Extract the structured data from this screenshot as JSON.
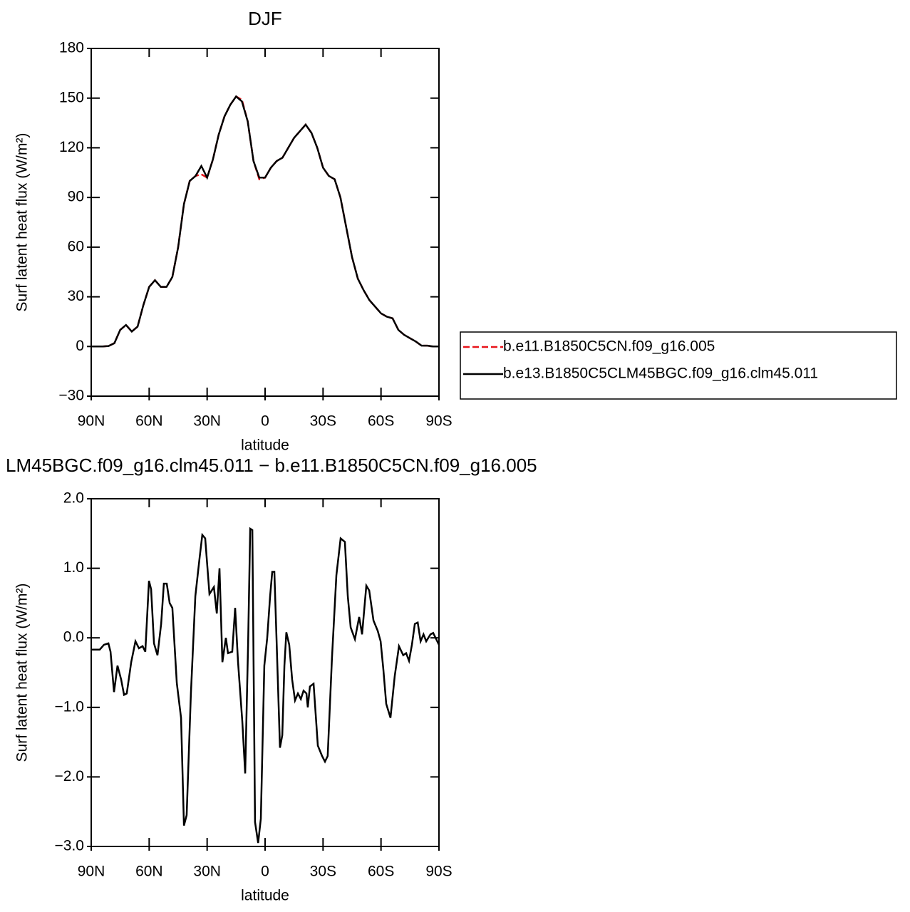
{
  "chart_data": [
    {
      "type": "line",
      "title": "DJF",
      "x_label": "latitude",
      "y_label": "Surf latent heat flux (W/m²)",
      "x": [
        90,
        87,
        84,
        81,
        78,
        75,
        72,
        69,
        66,
        63,
        60,
        57,
        54,
        51,
        48,
        45,
        42,
        39,
        36,
        33,
        30,
        27,
        24,
        21,
        18,
        15,
        12,
        9,
        6,
        3,
        0,
        -3,
        -6,
        -9,
        -12,
        -15,
        -18,
        -21,
        -24,
        -27,
        -30,
        -33,
        -36,
        -39,
        -42,
        -45,
        -48,
        -51,
        -54,
        -57,
        -60,
        -63,
        -66,
        -69,
        -72,
        -75,
        -78,
        -81,
        -84,
        -87,
        -90
      ],
      "series": [
        {
          "name": "b.e11.B1850C5CN.f09_g16.005",
          "color": "#e8141a",
          "line_style": "dashed",
          "values": [
            0,
            0,
            0,
            0.3,
            2,
            10,
            13,
            9,
            12,
            25,
            36,
            40,
            36,
            36,
            42,
            60,
            86,
            100,
            103,
            104,
            102,
            113,
            128,
            139,
            146,
            151,
            149,
            136,
            112,
            101,
            102,
            108,
            112,
            114,
            120,
            126,
            130,
            134,
            129,
            120,
            108,
            103,
            101,
            90,
            72,
            54,
            41,
            34,
            28,
            24,
            20,
            18,
            17,
            10,
            7,
            5,
            3,
            0.5,
            0.5,
            0,
            0
          ]
        },
        {
          "name": "b.e13.B1850C5CLM45BGC.f09_g16.clm45.011",
          "color": "#000000",
          "line_style": "solid",
          "values": [
            0,
            0,
            0,
            0.3,
            2,
            10,
            13,
            9,
            12,
            25,
            36,
            40,
            36,
            36,
            42,
            60,
            86,
            100,
            103,
            109,
            102,
            113,
            128,
            139,
            146,
            151,
            148,
            136,
            112,
            102,
            102,
            108,
            112,
            114,
            120,
            126,
            130,
            134,
            129,
            120,
            108,
            103,
            101,
            90,
            72,
            54,
            41,
            34,
            28,
            24,
            20,
            18,
            17,
            10,
            7,
            5,
            3,
            0.5,
            0.5,
            0,
            0
          ]
        }
      ],
      "xlim": [
        90,
        -90
      ],
      "xticks": [
        {
          "value": 90,
          "label": "90N"
        },
        {
          "value": 60,
          "label": "60N"
        },
        {
          "value": 30,
          "label": "30N"
        },
        0,
        {
          "value": -30,
          "label": "30S"
        },
        {
          "value": -60,
          "label": "60S"
        },
        {
          "value": -90,
          "label": "90S"
        }
      ],
      "ylim": [
        -30,
        180
      ],
      "yticks": [
        {
          "value": -30,
          "label": "−30"
        },
        0,
        30,
        60,
        90,
        120,
        150,
        180
      ]
    },
    {
      "type": "line",
      "title": "LM45BGC.f09_g16.clm45.011 − b.e11.B1850C5CN.f09_g16.005",
      "x_label": "latitude",
      "y_label": "Surf latent heat flux (W/m²)",
      "x": [
        90,
        85.6,
        83.4,
        81.1,
        80,
        78.2,
        76.4,
        74.5,
        73,
        71.6,
        69.3,
        67.1,
        65.3,
        63.4,
        62,
        60.1,
        59,
        57.5,
        55.7,
        53.8,
        52.4,
        50.9,
        49.4,
        48,
        45.7,
        43.5,
        42,
        40.6,
        38.4,
        36.1,
        33.9,
        32.5,
        31,
        28.8,
        26.5,
        25,
        23.6,
        22.1,
        20.3,
        19.2,
        17,
        15.5,
        14,
        11.8,
        10.3,
        8.8,
        7.7,
        6.6,
        5.2,
        3.6,
        2.2,
        0.4,
        -1.1,
        -2.6,
        -3.7,
        -4.8,
        -5.9,
        -7.7,
        -8.9,
        -10,
        -11,
        -12.5,
        -14,
        -15.5,
        -17,
        -18.5,
        -19.9,
        -21.4,
        -22.1,
        -23.2,
        -25.1,
        -27.3,
        -29.5,
        -31,
        -32.4,
        -34.6,
        -36.9,
        -39.1,
        -41.3,
        -42.8,
        -44.3,
        -46.5,
        -48.7,
        -50.2,
        -52.4,
        -53.9,
        -56.1,
        -58.3,
        -59.8,
        -61.2,
        -62.7,
        -64.9,
        -67.1,
        -69.3,
        -71.5,
        -73,
        -74.5,
        -76,
        -77.5,
        -79,
        -80.5,
        -82,
        -83.4,
        -85.6,
        -87,
        -90
      ],
      "series": [
        {
          "color": "#000000",
          "line_style": "solid",
          "values": [
            -0.17,
            -0.17,
            -0.1,
            -0.08,
            -0.2,
            -0.78,
            -0.4,
            -0.6,
            -0.82,
            -0.8,
            -0.35,
            -0.05,
            -0.15,
            -0.12,
            -0.2,
            0.82,
            0.7,
            -0.08,
            -0.25,
            0.2,
            0.78,
            0.78,
            0.5,
            0.43,
            -0.65,
            -1.15,
            -2.7,
            -2.55,
            -0.8,
            0.6,
            1.15,
            1.48,
            1.43,
            0.63,
            0.73,
            0.35,
            1.0,
            -0.35,
            0.0,
            -0.22,
            -0.2,
            0.43,
            -0.35,
            -1.2,
            -1.95,
            -0.1,
            1.57,
            1.55,
            -2.65,
            -2.95,
            -2.6,
            -0.4,
            0.0,
            0.6,
            0.95,
            0.95,
            0.0,
            -1.58,
            -1.4,
            -0.4,
            0.08,
            -0.1,
            -0.6,
            -0.9,
            -0.8,
            -0.88,
            -0.76,
            -0.8,
            -1.0,
            -0.7,
            -0.66,
            -1.55,
            -1.7,
            -1.78,
            -1.7,
            -0.3,
            0.9,
            1.43,
            1.38,
            0.6,
            0.15,
            -0.02,
            0.3,
            0.05,
            0.75,
            0.68,
            0.25,
            0.1,
            -0.05,
            -0.45,
            -0.95,
            -1.15,
            -0.55,
            -0.12,
            -0.25,
            -0.22,
            -0.33,
            -0.1,
            0.2,
            0.22,
            -0.05,
            0.05,
            -0.05,
            0.05,
            0.07,
            -0.1
          ]
        }
      ],
      "xlim": [
        90,
        -90
      ],
      "xticks": [
        {
          "value": 90,
          "label": "90N"
        },
        {
          "value": 60,
          "label": "60N"
        },
        {
          "value": 30,
          "label": "30N"
        },
        0,
        {
          "value": -30,
          "label": "30S"
        },
        {
          "value": -60,
          "label": "60S"
        },
        {
          "value": -90,
          "label": "90S"
        }
      ],
      "ylim": [
        -3,
        2
      ],
      "yticks": [
        {
          "value": -3,
          "label": "−3.0"
        },
        {
          "value": -2,
          "label": "−2.0"
        },
        {
          "value": -1,
          "label": "−1.0"
        },
        {
          "value": 0,
          "label": "0.0"
        },
        {
          "value": 1,
          "label": "1.0"
        },
        {
          "value": 2,
          "label": "2.0"
        }
      ]
    }
  ]
}
